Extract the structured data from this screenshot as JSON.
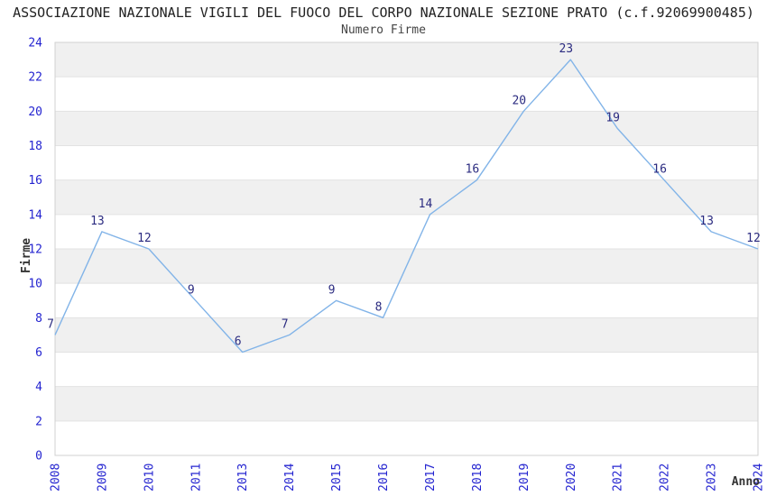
{
  "chart_data": {
    "type": "line",
    "title": "ASSOCIAZIONE NAZIONALE VIGILI DEL FUOCO DEL CORPO NAZIONALE SEZIONE PRATO (c.f.92069900485)",
    "subtitle": "Numero Firme",
    "xlabel": "Anno",
    "ylabel": "Firme",
    "categories": [
      "2008",
      "2009",
      "2010",
      "2011",
      "2013",
      "2014",
      "2015",
      "2016",
      "2017",
      "2018",
      "2019",
      "2020",
      "2021",
      "2022",
      "2023",
      "2024"
    ],
    "series": [
      {
        "name": "Numero Firme",
        "values": [
          7,
          13,
          12,
          9,
          6,
          7,
          9,
          8,
          14,
          16,
          20,
          23,
          19,
          16,
          13,
          12
        ]
      }
    ],
    "ylim": [
      0,
      24
    ],
    "ytick_step": 2,
    "yticks": [
      0,
      2,
      4,
      6,
      8,
      10,
      12,
      14,
      16,
      18,
      20,
      22,
      24
    ],
    "grid": "horizontal-gridlines-with-alternating-bands",
    "legend_position": "none",
    "data_labels_visible": true,
    "markers": "none",
    "colors": {
      "line": "#82b4e8",
      "band": "#f0f0f0",
      "gridline": "#e2e2e2",
      "plot_border": "#d0d0d0",
      "tick_label": "#2424d0",
      "data_label": "#2b2b80",
      "title": "#222222",
      "subtitle": "#444444",
      "axis_title": "#333333"
    }
  }
}
